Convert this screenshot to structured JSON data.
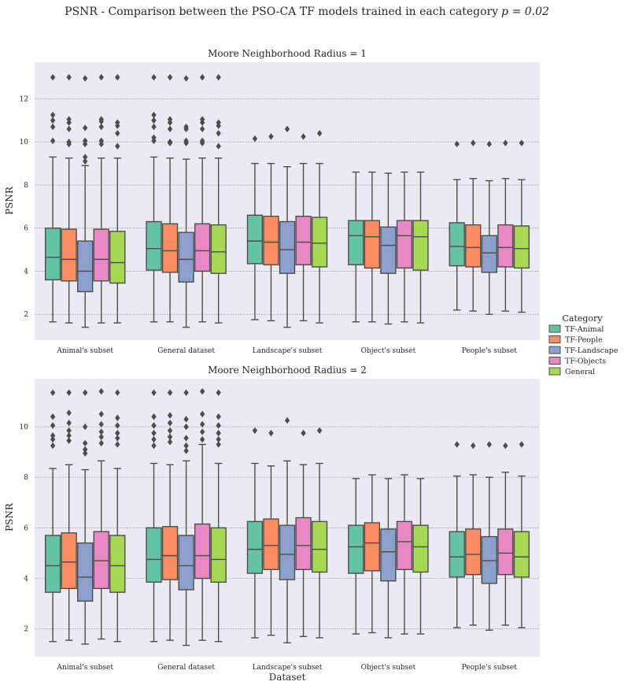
{
  "figure": {
    "suptitle": "PSNR - Comparison between the PSO-CA TF models trained in each category",
    "suptitle_math": "p = 0.02"
  },
  "legend": {
    "title": "Category",
    "placement": "right-center"
  },
  "colors": {
    "background": "#eaeaf2",
    "grid": "#9a9a9a",
    "box_edge": "#4d4d4d",
    "text": "#262626"
  },
  "chart_data": [
    {
      "type": "box",
      "title": "Moore Neighborhood Radius = 1",
      "xlabel": "",
      "ylabel": "PSNR",
      "ylim": [
        0.8,
        13.7
      ],
      "yticks": [
        2,
        4,
        6,
        8,
        10,
        12
      ],
      "grid": true,
      "categories": [
        "Animal's subset",
        "General dataset",
        "Landscape's subset",
        "Object's subset",
        "People's subset"
      ],
      "series": [
        {
          "name": "TF-Animal",
          "color": "#66c2a5",
          "boxes": [
            {
              "whislo": 1.65,
              "q1": 3.6,
              "med": 4.65,
              "q3": 6.0,
              "whishi": 9.3,
              "fliers": [
                13.0,
                11.25,
                11.0,
                10.7,
                10.05
              ]
            },
            {
              "whislo": 1.65,
              "q1": 4.05,
              "med": 5.05,
              "q3": 6.3,
              "whishi": 9.3,
              "fliers": [
                13.0,
                11.25,
                11.0,
                10.7,
                10.2,
                10.05
              ]
            },
            {
              "whislo": 1.75,
              "q1": 4.35,
              "med": 5.4,
              "q3": 6.6,
              "whishi": 9.0,
              "fliers": [
                10.15
              ]
            },
            {
              "whislo": 1.65,
              "q1": 4.3,
              "med": 5.65,
              "q3": 6.35,
              "whishi": 8.6,
              "fliers": []
            },
            {
              "whislo": 2.2,
              "q1": 4.25,
              "med": 5.15,
              "q3": 6.25,
              "whishi": 8.25,
              "fliers": [
                9.9
              ]
            }
          ]
        },
        {
          "name": "TF-People",
          "color": "#fc8d62",
          "boxes": [
            {
              "whislo": 1.6,
              "q1": 3.55,
              "med": 4.55,
              "q3": 5.95,
              "whishi": 9.25,
              "fliers": [
                13.0,
                11.05,
                10.9,
                10.6,
                10.0,
                9.9
              ]
            },
            {
              "whislo": 1.65,
              "q1": 3.95,
              "med": 4.95,
              "q3": 6.2,
              "whishi": 9.25,
              "fliers": [
                13.0,
                11.05,
                10.9,
                10.6,
                10.0,
                9.95
              ]
            },
            {
              "whislo": 1.7,
              "q1": 4.3,
              "med": 5.35,
              "q3": 6.55,
              "whishi": 9.0,
              "fliers": [
                10.25
              ]
            },
            {
              "whislo": 1.65,
              "q1": 4.15,
              "med": 5.6,
              "q3": 6.35,
              "whishi": 8.6,
              "fliers": []
            },
            {
              "whislo": 2.15,
              "q1": 4.2,
              "med": 5.1,
              "q3": 6.15,
              "whishi": 8.3,
              "fliers": [
                9.95
              ]
            }
          ]
        },
        {
          "name": "TF-Landscape",
          "color": "#8da0cb",
          "boxes": [
            {
              "whislo": 1.4,
              "q1": 3.05,
              "med": 4.0,
              "q3": 5.4,
              "whishi": 8.9,
              "fliers": [
                12.95,
                10.65,
                10.05,
                9.9,
                9.3,
                9.1
              ]
            },
            {
              "whislo": 1.4,
              "q1": 3.5,
              "med": 4.55,
              "q3": 5.8,
              "whishi": 9.2,
              "fliers": [
                12.95,
                10.7,
                10.6,
                10.05,
                9.95
              ]
            },
            {
              "whislo": 1.4,
              "q1": 3.9,
              "med": 5.0,
              "q3": 6.3,
              "whishi": 8.85,
              "fliers": [
                10.6
              ]
            },
            {
              "whislo": 1.55,
              "q1": 3.9,
              "med": 5.2,
              "q3": 6.05,
              "whishi": 8.55,
              "fliers": []
            },
            {
              "whislo": 2.0,
              "q1": 3.95,
              "med": 4.85,
              "q3": 5.65,
              "whishi": 8.2,
              "fliers": [
                9.9
              ]
            }
          ]
        },
        {
          "name": "TF-Objects",
          "color": "#e78ac3",
          "boxes": [
            {
              "whislo": 1.6,
              "q1": 3.55,
              "med": 4.55,
              "q3": 5.95,
              "whishi": 9.25,
              "fliers": [
                13.0,
                11.05,
                10.95,
                10.7,
                10.05,
                9.9
              ]
            },
            {
              "whislo": 1.65,
              "q1": 4.0,
              "med": 4.95,
              "q3": 6.2,
              "whishi": 9.25,
              "fliers": [
                13.0,
                11.05,
                10.9,
                10.6,
                10.05,
                9.95
              ]
            },
            {
              "whislo": 1.7,
              "q1": 4.3,
              "med": 5.35,
              "q3": 6.55,
              "whishi": 9.0,
              "fliers": [
                10.25
              ]
            },
            {
              "whislo": 1.65,
              "q1": 4.15,
              "med": 5.65,
              "q3": 6.35,
              "whishi": 8.6,
              "fliers": []
            },
            {
              "whislo": 2.15,
              "q1": 4.2,
              "med": 5.1,
              "q3": 6.15,
              "whishi": 8.3,
              "fliers": [
                9.95
              ]
            }
          ]
        },
        {
          "name": "General",
          "color": "#a6d854",
          "boxes": [
            {
              "whislo": 1.6,
              "q1": 3.45,
              "med": 4.4,
              "q3": 5.85,
              "whishi": 9.25,
              "fliers": [
                13.0,
                10.9,
                10.75,
                10.4,
                9.8
              ]
            },
            {
              "whislo": 1.6,
              "q1": 3.9,
              "med": 4.9,
              "q3": 6.15,
              "whishi": 9.25,
              "fliers": [
                13.0,
                10.9,
                10.75,
                10.4,
                9.8
              ]
            },
            {
              "whislo": 1.6,
              "q1": 4.2,
              "med": 5.3,
              "q3": 6.5,
              "whishi": 9.0,
              "fliers": [
                10.4
              ]
            },
            {
              "whislo": 1.6,
              "q1": 4.05,
              "med": 5.6,
              "q3": 6.35,
              "whishi": 8.6,
              "fliers": []
            },
            {
              "whislo": 2.1,
              "q1": 4.15,
              "med": 5.05,
              "q3": 6.1,
              "whishi": 8.25,
              "fliers": [
                9.95
              ]
            }
          ]
        }
      ]
    },
    {
      "type": "box",
      "title": "Moore Neighborhood Radius = 2",
      "xlabel": "Dataset",
      "ylabel": "PSNR",
      "ylim": [
        0.9,
        11.9
      ],
      "yticks": [
        2,
        4,
        6,
        8,
        10
      ],
      "grid": true,
      "categories": [
        "Animal's subset",
        "General dataset",
        "Landscape's subset",
        "Object's subset",
        "People's subset"
      ],
      "series": [
        {
          "name": "TF-Animal",
          "color": "#66c2a5",
          "boxes": [
            {
              "whislo": 1.5,
              "q1": 3.45,
              "med": 4.5,
              "q3": 5.7,
              "whishi": 8.35,
              "fliers": [
                11.35,
                10.4,
                10.05,
                9.65,
                9.5,
                9.25
              ]
            },
            {
              "whislo": 1.5,
              "q1": 3.85,
              "med": 4.75,
              "q3": 6.0,
              "whishi": 8.55,
              "fliers": [
                11.35,
                10.4,
                10.05,
                9.75,
                9.5,
                9.25
              ]
            },
            {
              "whislo": 1.65,
              "q1": 4.2,
              "med": 5.15,
              "q3": 6.25,
              "whishi": 8.55,
              "fliers": [
                9.85
              ]
            },
            {
              "whislo": 1.8,
              "q1": 4.2,
              "med": 5.25,
              "q3": 6.1,
              "whishi": 7.95,
              "fliers": []
            },
            {
              "whislo": 2.05,
              "q1": 4.05,
              "med": 4.85,
              "q3": 5.85,
              "whishi": 8.05,
              "fliers": [
                9.3
              ]
            }
          ]
        },
        {
          "name": "TF-People",
          "color": "#fc8d62",
          "boxes": [
            {
              "whislo": 1.55,
              "q1": 3.6,
              "med": 4.65,
              "q3": 5.8,
              "whishi": 8.5,
              "fliers": [
                11.35,
                10.55,
                10.15,
                9.85,
                9.65,
                9.45
              ]
            },
            {
              "whislo": 1.55,
              "q1": 3.95,
              "med": 4.9,
              "q3": 6.05,
              "whishi": 8.5,
              "fliers": [
                11.35,
                10.45,
                10.15,
                9.85,
                9.6,
                9.4
              ]
            },
            {
              "whislo": 1.75,
              "q1": 4.35,
              "med": 5.3,
              "q3": 6.35,
              "whishi": 8.45,
              "fliers": [
                9.75
              ]
            },
            {
              "whislo": 1.85,
              "q1": 4.3,
              "med": 5.4,
              "q3": 6.2,
              "whishi": 8.1,
              "fliers": []
            },
            {
              "whislo": 2.15,
              "q1": 4.15,
              "med": 4.95,
              "q3": 5.95,
              "whishi": 8.1,
              "fliers": [
                9.25
              ]
            }
          ]
        },
        {
          "name": "TF-Landscape",
          "color": "#8da0cb",
          "boxes": [
            {
              "whislo": 1.4,
              "q1": 3.1,
              "med": 4.05,
              "q3": 5.4,
              "whishi": 8.3,
              "fliers": [
                11.35,
                10.0,
                9.35,
                9.1,
                8.95
              ]
            },
            {
              "whislo": 1.35,
              "q1": 3.55,
              "med": 4.5,
              "q3": 5.7,
              "whishi": 8.65,
              "fliers": [
                11.35,
                10.3,
                10.0,
                9.55,
                9.25,
                9.05
              ]
            },
            {
              "whislo": 1.45,
              "q1": 3.95,
              "med": 4.95,
              "q3": 6.1,
              "whishi": 8.65,
              "fliers": [
                10.25
              ]
            },
            {
              "whislo": 1.65,
              "q1": 3.9,
              "med": 5.05,
              "q3": 5.95,
              "whishi": 7.95,
              "fliers": []
            },
            {
              "whislo": 1.95,
              "q1": 3.8,
              "med": 4.7,
              "q3": 5.65,
              "whishi": 8.0,
              "fliers": [
                9.3
              ]
            }
          ]
        },
        {
          "name": "TF-Objects",
          "color": "#e78ac3",
          "boxes": [
            {
              "whislo": 1.6,
              "q1": 3.6,
              "med": 4.7,
              "q3": 5.85,
              "whishi": 8.65,
              "fliers": [
                11.4,
                10.5,
                10.1,
                9.8,
                9.6,
                9.35
              ]
            },
            {
              "whislo": 1.55,
              "q1": 4.0,
              "med": 4.9,
              "q3": 6.15,
              "whishi": 9.3,
              "fliers": [
                11.4,
                10.5,
                10.1,
                9.8,
                9.5
              ]
            },
            {
              "whislo": 1.7,
              "q1": 4.35,
              "med": 5.3,
              "q3": 6.4,
              "whishi": 8.5,
              "fliers": [
                9.75
              ]
            },
            {
              "whislo": 1.8,
              "q1": 4.35,
              "med": 5.45,
              "q3": 6.25,
              "whishi": 8.1,
              "fliers": []
            },
            {
              "whislo": 2.15,
              "q1": 4.15,
              "med": 5.0,
              "q3": 5.95,
              "whishi": 8.2,
              "fliers": [
                9.25
              ]
            }
          ]
        },
        {
          "name": "General",
          "color": "#a6d854",
          "boxes": [
            {
              "whislo": 1.5,
              "q1": 3.45,
              "med": 4.5,
              "q3": 5.7,
              "whishi": 8.35,
              "fliers": [
                11.35,
                10.35,
                10.05,
                9.75,
                9.55,
                9.3
              ]
            },
            {
              "whislo": 1.5,
              "q1": 3.85,
              "med": 4.75,
              "q3": 6.0,
              "whishi": 8.55,
              "fliers": [
                11.35,
                10.4,
                10.05,
                9.75,
                9.5,
                9.3
              ]
            },
            {
              "whislo": 1.65,
              "q1": 4.25,
              "med": 5.15,
              "q3": 6.25,
              "whishi": 8.55,
              "fliers": [
                9.85
              ]
            },
            {
              "whislo": 1.8,
              "q1": 4.25,
              "med": 5.25,
              "q3": 6.1,
              "whishi": 7.95,
              "fliers": []
            },
            {
              "whislo": 2.05,
              "q1": 4.05,
              "med": 4.85,
              "q3": 5.85,
              "whishi": 8.05,
              "fliers": [
                9.3
              ]
            }
          ]
        }
      ]
    }
  ]
}
